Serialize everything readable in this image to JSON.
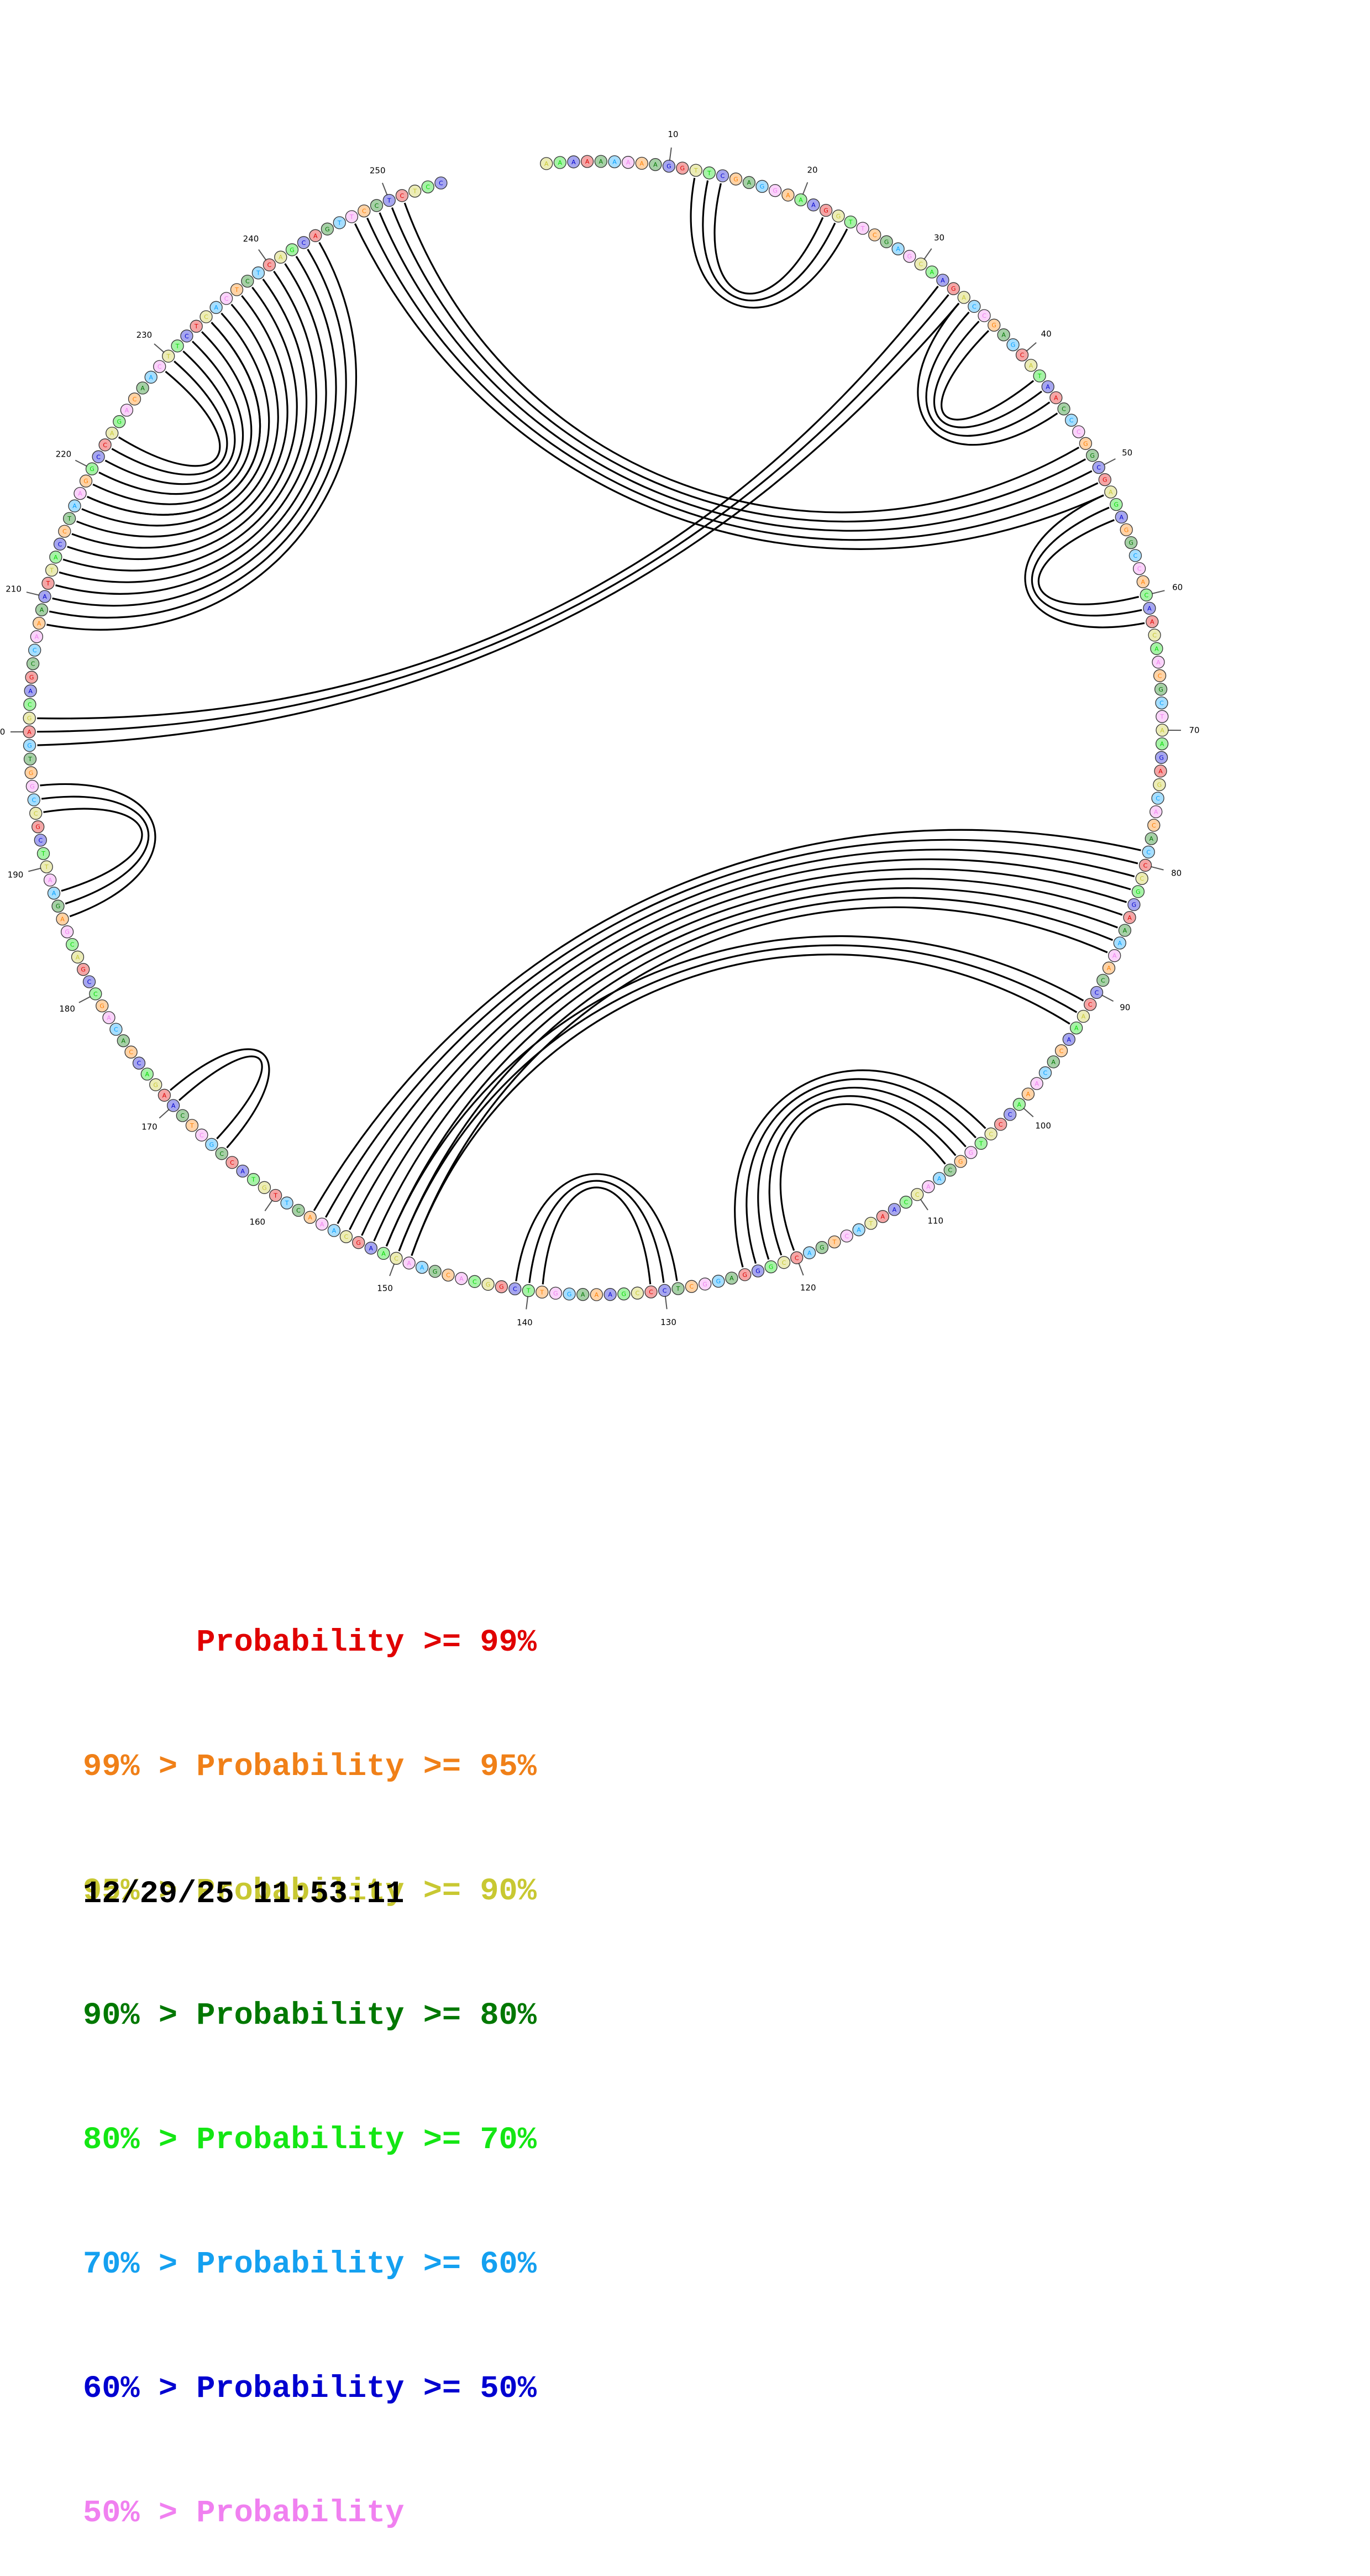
{
  "diagram": {
    "sequence": "AAAAAAAAAGGTTCGAGGAAAGGTTCGAGCAAGACCGAGCATAACCCGGCGAGAGGCCACAACAACGCTAAGAGCACACCCGGAAAAACCCAAACACAAACCCTGGCAACCAATACTGACCGGGAGGCTCCCGAAAGGTTCGGCACGAACAAGCAAACTTGTACCGCTCAAGACCACAGCCGACGAGAATTCGCCGGTGAGCAGCCAAAATTACCTAAGGCCAGACAACTTCTCACTCTCAGCAGTTCCTCTCC",
    "color_levels": [
      "#e00000",
      "#ff8000",
      "#c8c832",
      "#007800",
      "#00dc00",
      "#00a0ff",
      "#0000d0",
      "#f080f0"
    ],
    "position_labels": [
      10,
      20,
      30,
      40,
      50,
      60,
      70,
      80,
      90,
      100,
      110,
      120,
      130,
      140,
      150,
      160,
      170,
      180,
      190,
      200,
      210,
      220,
      230,
      240,
      250
    ],
    "helices": [
      {
        "i": 12,
        "j": 24,
        "len": 3
      },
      {
        "i": 32,
        "j": 201,
        "len": 3
      },
      {
        "i": 34,
        "j": 45,
        "len": 4
      },
      {
        "i": 48,
        "j": 251,
        "len": 5
      },
      {
        "i": 52,
        "j": 62,
        "len": 3
      },
      {
        "i": 79,
        "j": 157,
        "len": 9
      },
      {
        "i": 91,
        "j": 151,
        "len": 3
      },
      {
        "i": 103,
        "j": 124,
        "len": 5
      },
      {
        "i": 129,
        "j": 141,
        "len": 3
      },
      {
        "i": 165,
        "j": 171,
        "len": 2
      },
      {
        "i": 186,
        "j": 196,
        "len": 3
      },
      {
        "i": 208,
        "j": 244,
        "len": 11
      },
      {
        "i": 218,
        "j": 234,
        "len": 6
      }
    ]
  },
  "legend": [
    {
      "text": "      Probability >= 99%",
      "color": "#e00000"
    },
    {
      "text": "99% > Probability >= 95%",
      "color": "#f08018"
    },
    {
      "text": "95% > Probability >= 90%",
      "color": "#c8c832"
    },
    {
      "text": "90% > Probability >= 80%",
      "color": "#007800"
    },
    {
      "text": "80% > Probability >= 70%",
      "color": "#14e614"
    },
    {
      "text": "70% > Probability >= 60%",
      "color": "#14a0f0"
    },
    {
      "text": "60% > Probability >= 50%",
      "color": "#0000d0"
    },
    {
      "text": "50% > Probability",
      "color": "#f080f0"
    }
  ],
  "timestamp": "12/29/25 11:53:11"
}
